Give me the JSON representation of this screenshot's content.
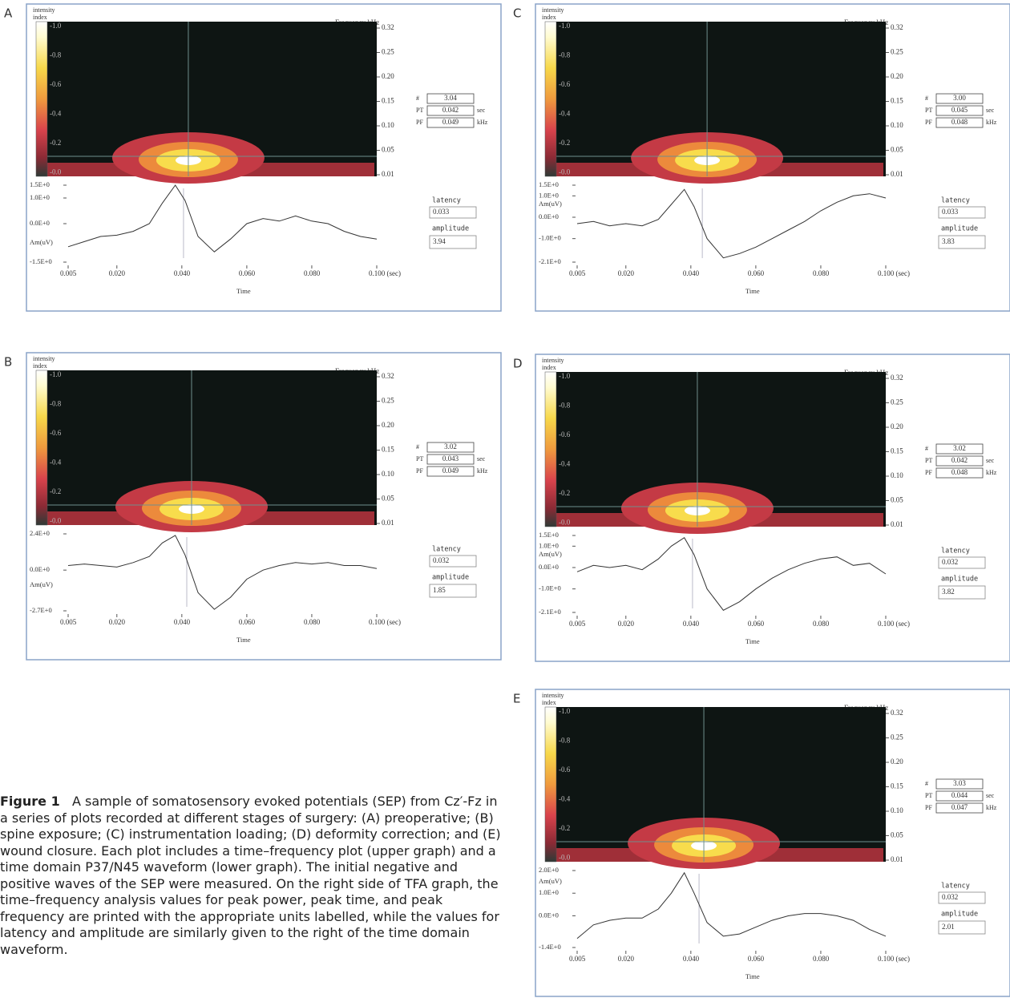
{
  "common": {
    "intensity": "intensity",
    "index": "index",
    "frequency_label": "Frequency kHz",
    "colorbar_ticks": [
      "-1.0",
      "-0.8",
      "-0.6",
      "-0.4",
      "-0.2",
      "-0.0"
    ],
    "freq_ticks": [
      "0.32",
      "0.25",
      "0.20",
      "0.15",
      "0.10",
      "0.05",
      "0.01"
    ],
    "pp_label": "#",
    "pt_label": "PT",
    "pf_label": "PF",
    "sec": "sec",
    "khz": "kHz",
    "latency_label": "latency",
    "amplitude_label": "amplitude",
    "am_label": "Am(uV)",
    "time_label": "Time",
    "xlim": [
      0.005,
      0.1
    ],
    "xticks": [
      {
        "value": 0.005,
        "label": "0.005"
      },
      {
        "value": 0.02,
        "label": "0.020"
      },
      {
        "value": 0.04,
        "label": "0.040"
      },
      {
        "value": 0.06,
        "label": "0.060"
      },
      {
        "value": 0.08,
        "label": "0.080"
      },
      {
        "value": 0.1,
        "label": "0.100 (sec)"
      }
    ],
    "time_points": [
      0.005,
      0.01,
      0.015,
      0.02,
      0.025,
      0.03,
      0.034,
      0.038,
      0.041,
      0.045,
      0.05,
      0.055,
      0.06,
      0.065,
      0.07,
      0.075,
      0.08,
      0.085,
      0.09,
      0.095,
      0.1
    ]
  },
  "panels": [
    {
      "letter": "A",
      "pp": "3.04",
      "pt": 0.042,
      "pf": 0.049,
      "latency": 0.033,
      "amplitude": 3.94,
      "ylim": [
        -1.5,
        1.5
      ],
      "am_at": -0.75,
      "yticks": [
        {
          "value": 1.5,
          "label": "1.5E+0"
        },
        {
          "value": 1.0,
          "label": "1.0E+0"
        },
        {
          "value": 0,
          "label": "0.0E+0"
        },
        {
          "value": -1.5,
          "label": "-1.5E+0"
        }
      ],
      "waveform": [
        -0.9,
        -0.7,
        -0.5,
        -0.45,
        -0.3,
        0.0,
        0.8,
        1.5,
        0.9,
        -0.5,
        -1.1,
        -0.6,
        0.0,
        0.2,
        0.1,
        0.3,
        0.1,
        0.0,
        -0.3,
        -0.5,
        -0.6
      ]
    },
    {
      "letter": "B",
      "pp": "3.02",
      "pt": 0.043,
      "pf": 0.049,
      "latency": 0.032,
      "amplitude": 1.85,
      "ylim": [
        -2.7,
        2.4
      ],
      "am_at": -1.0,
      "yticks": [
        {
          "value": 2.4,
          "label": "2.4E+0"
        },
        {
          "value": 0,
          "label": "0.0E+0"
        },
        {
          "value": -2.7,
          "label": "-2.7E+0"
        }
      ],
      "waveform": [
        0.3,
        0.4,
        0.3,
        0.2,
        0.5,
        0.9,
        1.8,
        2.3,
        1.0,
        -1.5,
        -2.6,
        -1.8,
        -0.6,
        0.0,
        0.3,
        0.5,
        0.4,
        0.5,
        0.3,
        0.3,
        0.1
      ]
    },
    {
      "letter": "C",
      "pp": "3.00",
      "pt": 0.045,
      "pf": 0.048,
      "latency": 0.033,
      "amplitude": 3.83,
      "ylim": [
        -2.1,
        1.5
      ],
      "am_at": 0.6,
      "yticks": [
        {
          "value": 1.5,
          "label": "1.5E+0"
        },
        {
          "value": 1.0,
          "label": "1.0E+0"
        },
        {
          "value": 0,
          "label": "0.0E+0"
        },
        {
          "value": -1.0,
          "label": "-1.0E+0"
        },
        {
          "value": -2.1,
          "label": "-2.1E+0"
        }
      ],
      "waveform": [
        -0.3,
        -0.2,
        -0.4,
        -0.3,
        -0.4,
        -0.1,
        0.6,
        1.3,
        0.5,
        -1.0,
        -1.9,
        -1.7,
        -1.4,
        -1.0,
        -0.6,
        -0.2,
        0.3,
        0.7,
        1.0,
        1.1,
        0.9
      ]
    },
    {
      "letter": "D",
      "pp": "3.02",
      "pt": 0.042,
      "pf": 0.048,
      "latency": 0.032,
      "amplitude": 3.82,
      "ylim": [
        -2.1,
        1.5
      ],
      "am_at": 0.6,
      "yticks": [
        {
          "value": 1.5,
          "label": "1.5E+0"
        },
        {
          "value": 1.0,
          "label": "1.0E+0"
        },
        {
          "value": 0,
          "label": "0.0E+0"
        },
        {
          "value": -1.0,
          "label": "-1.0E+0"
        },
        {
          "value": -2.1,
          "label": "-2.1E+0"
        }
      ],
      "waveform": [
        -0.2,
        0.1,
        0.0,
        0.1,
        -0.1,
        0.4,
        1.0,
        1.4,
        0.6,
        -1.0,
        -2.0,
        -1.6,
        -1.0,
        -0.5,
        -0.1,
        0.2,
        0.4,
        0.5,
        0.1,
        0.2,
        -0.3
      ]
    },
    {
      "letter": "E",
      "pp": "3.03",
      "pt": 0.044,
      "pf": 0.047,
      "latency": 0.032,
      "amplitude": 2.01,
      "ylim": [
        -1.4,
        2.0
      ],
      "am_at": 1.5,
      "yticks": [
        {
          "value": 2.0,
          "label": "2.0E+0"
        },
        {
          "value": 1.0,
          "label": "1.0E+0"
        },
        {
          "value": 0,
          "label": "0.0E+0"
        },
        {
          "value": -1.4,
          "label": "-1.4E+0"
        }
      ],
      "waveform": [
        -1.0,
        -0.4,
        -0.2,
        -0.1,
        -0.1,
        0.3,
        1.0,
        1.9,
        1.0,
        -0.3,
        -0.9,
        -0.8,
        -0.5,
        -0.2,
        0.0,
        0.1,
        0.1,
        0.0,
        -0.2,
        -0.6,
        -0.9
      ]
    }
  ],
  "caption": {
    "label": "Figure 1",
    "text": "A sample of somatosensory evoked potentials (SEP) from Cz′-Fz in a series of plots recorded at different stages of surgery: (A) preoperative; (B) spine exposure; (C) instrumentation loading; (D) deformity correction; and (E) wound closure. Each plot includes a time–frequency plot (upper graph) and a time domain P37/N45 waveform (lower graph). The initial negative and positive waves of the SEP were measured. On the right side of TFA graph, the time–frequency analysis values for peak power, peak time, and peak frequency are printed with the appropriate units labelled, while the values for latency and amplitude are similarly given to the right of the time domain waveform."
  }
}
